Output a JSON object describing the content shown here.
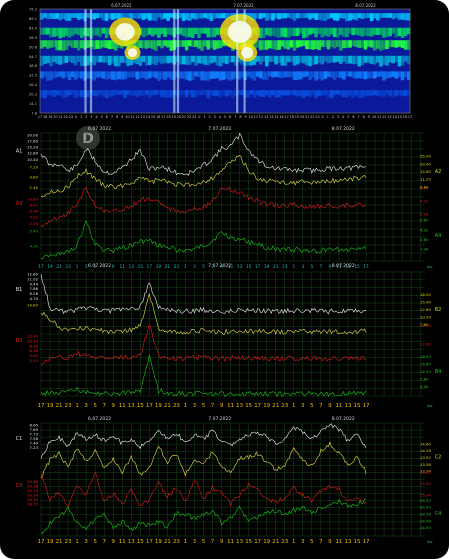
{
  "colors": {
    "white": "#f2f2f2",
    "yellow": "#e6e64a",
    "red": "#e01c1c",
    "green": "#18c818",
    "grid": "#1f5a1f",
    "date_text": "#dcdcdc",
    "axis_text_x": "#20c0c0",
    "axis_text_bottom": "#f0c000",
    "y_yellow": "#d8d800",
    "y_red": "#e02020",
    "y_green": "#20c020"
  },
  "spectrogram": {
    "top_dates": [
      "6.07.2022",
      "7.07.2022",
      "8.07.2022"
    ],
    "y_ticks": [
      "7.8",
      "14.1",
      "20.3",
      "26.4",
      "32.5",
      "38.6",
      "44.7",
      "50.8",
      "56.9",
      "63.0",
      "69.1",
      "75.2"
    ],
    "time_labels": [
      "17",
      "18",
      "19",
      "20",
      "21",
      "22",
      "23",
      "0",
      "1",
      "2",
      "3",
      "4",
      "5",
      "6",
      "7",
      "8",
      "9",
      "10",
      "11",
      "12",
      "13",
      "14",
      "15",
      "16",
      "17",
      "18",
      "19",
      "20",
      "21",
      "22",
      "23",
      "0",
      "1",
      "2",
      "3",
      "4",
      "5",
      "6",
      "7",
      "8",
      "9",
      "10",
      "11",
      "12",
      "13",
      "14",
      "15",
      "16",
      "17",
      "18",
      "19",
      "20",
      "21",
      "22",
      "23",
      "0",
      "1",
      "2",
      "3",
      "4",
      "5",
      "6",
      "7",
      "8",
      "9",
      "10",
      "11",
      "12",
      "13",
      "14",
      "15",
      "16",
      "17"
    ]
  },
  "watermark": "D",
  "chart_data": [
    {
      "type": "line",
      "panel": "A",
      "dates": [
        "6.07.2022",
        "7.07.2022",
        "8.07.2022"
      ],
      "x": [
        "17",
        "19",
        "21",
        "23",
        "1",
        "3",
        "5",
        "7",
        "9",
        "11",
        "13",
        "15",
        "17",
        "19",
        "21",
        "23",
        "1",
        "3",
        "5",
        "7",
        "9",
        "11",
        "13",
        "15",
        "17",
        "19",
        "21",
        "23",
        "1",
        "3",
        "5",
        "7",
        "9",
        "11",
        "13",
        "15",
        "17"
      ],
      "x_unit": "utc",
      "series": [
        {
          "name": "A1",
          "color": "white",
          "values": [
            14.5,
            11.5,
            12.0,
            10.2,
            11.5,
            15.5,
            12.6,
            10.0,
            9.8,
            11.0,
            13.0,
            15.2,
            10.5,
            11.2,
            10.8,
            9.8,
            9.5,
            10.2,
            11.6,
            13.2,
            15.5,
            16.2,
            18.8,
            15.2,
            12.8,
            11.5,
            10.8,
            10.6,
            10.4,
            10.5,
            10.3,
            10.6,
            10.8,
            11.0,
            10.9,
            11.0,
            11.2
          ]
        },
        {
          "name": "A2",
          "color": "yellow",
          "values": [
            3.5,
            4.0,
            4.5,
            5.2,
            7.5,
            8.8,
            7.0,
            5.6,
            5.2,
            5.6,
            6.2,
            7.4,
            6.3,
            6.8,
            6.4,
            5.8,
            5.6,
            5.9,
            6.4,
            7.2,
            9.0,
            10.6,
            12.1,
            8.9,
            7.0,
            6.6,
            6.4,
            6.3,
            6.2,
            6.3,
            6.2,
            6.4,
            6.6,
            6.8,
            7.0,
            7.2,
            7.4
          ]
        },
        {
          "name": "A3",
          "color": "red",
          "values": [
            1.5,
            2.8,
            3.2,
            3.9,
            5.6,
            8.4,
            5.5,
            4.3,
            4.1,
            4.6,
            5.1,
            6.3,
            6.4,
            5.8,
            4.9,
            4.5,
            4.3,
            4.6,
            5.1,
            5.9,
            8.4,
            8.2,
            7.7,
            6.7,
            6.1,
            5.5,
            5.3,
            5.3,
            5.5,
            5.2,
            5.0,
            5.1,
            5.3,
            5.2,
            5.3,
            5.4,
            5.6
          ]
        },
        {
          "name": "A4",
          "color": "green",
          "values": [
            0.5,
            1.2,
            1.6,
            2.1,
            3.2,
            8.7,
            3.4,
            2.5,
            2.3,
            2.7,
            3.3,
            4.1,
            4.2,
            3.4,
            2.8,
            2.5,
            2.2,
            2.5,
            3.2,
            4.3,
            6.0,
            5.0,
            4.7,
            4.0,
            3.6,
            2.9,
            2.6,
            2.4,
            2.5,
            2.3,
            2.2,
            2.3,
            2.6,
            2.4,
            2.5,
            2.8,
            3.0
          ]
        }
      ],
      "left_ticks": [
        {
          "series": "A1",
          "labels": [
            "20.00",
            "17.60",
            "15.20",
            "12.80",
            "10.40"
          ]
        },
        {
          "series": "A2",
          "labels": [
            "7.20",
            "4.80",
            "2.40"
          ]
        },
        {
          "series": "A3",
          "labels": [
            "10.80",
            "8.64",
            "6.48",
            "4.32",
            "2.16"
          ]
        },
        {
          "series": "A4",
          "labels": [
            "5.40",
            "4.32"
          ]
        }
      ],
      "right_ticks": [
        {
          "series": "A2",
          "labels": [
            "25.00",
            "20.40",
            "15.80",
            "11.20",
            "6.60"
          ]
        },
        {
          "series": "A3",
          "labels": [
            "5.40",
            "4.32",
            "2.16"
          ]
        },
        {
          "series": "A4",
          "labels": [
            "5.60",
            "4.20",
            "2.80",
            "1.40"
          ]
        }
      ]
    },
    {
      "type": "line",
      "panel": "B",
      "dates": [
        "6.07.2022",
        "7.07.2022",
        "8.07.2022"
      ],
      "x": [
        "17",
        "19",
        "21",
        "23",
        "1",
        "3",
        "5",
        "7",
        "9",
        "11",
        "13",
        "15",
        "17",
        "19",
        "21",
        "23",
        "1",
        "3",
        "5",
        "7",
        "9",
        "11",
        "13",
        "15",
        "17",
        "19",
        "21",
        "23",
        "1",
        "3",
        "5",
        "7",
        "9",
        "11",
        "13",
        "15",
        "17"
      ],
      "x_unit": "utc",
      "series": [
        {
          "name": "B1",
          "color": "white",
          "values": [
            12.6,
            3.2,
            2.6,
            2.2,
            2.8,
            3.2,
            3.0,
            2.6,
            2.5,
            2.8,
            2.9,
            3.6,
            10.2,
            3.5,
            2.6,
            2.4,
            2.3,
            2.6,
            2.7,
            2.5,
            2.4,
            2.5,
            2.8,
            2.6,
            2.7,
            2.5,
            2.4,
            2.4,
            2.5,
            2.4,
            2.5,
            2.3,
            2.3,
            2.4,
            2.5,
            2.4,
            2.6
          ]
        },
        {
          "name": "B2",
          "color": "yellow",
          "values": [
            8.0,
            6.2,
            4.0,
            3.1,
            3.5,
            3.8,
            3.3,
            3.0,
            2.9,
            3.1,
            3.4,
            4.2,
            12.6,
            3.8,
            3.1,
            2.9,
            2.8,
            3.0,
            3.2,
            2.9,
            2.8,
            2.9,
            3.1,
            3.0,
            3.0,
            2.9,
            2.8,
            2.8,
            2.9,
            2.8,
            2.9,
            2.8,
            2.8,
            2.9,
            2.9,
            2.9,
            3.0
          ]
        },
        {
          "name": "B3",
          "color": "red",
          "values": [
            2.0,
            3.2,
            3.6,
            3.5,
            4.8,
            3.8,
            3.6,
            3.4,
            3.3,
            3.5,
            3.6,
            4.2,
            12.4,
            4.1,
            3.5,
            3.3,
            3.2,
            3.4,
            3.6,
            3.3,
            3.2,
            3.3,
            3.4,
            3.3,
            3.4,
            3.3,
            3.2,
            3.2,
            3.3,
            3.2,
            3.3,
            3.2,
            3.2,
            3.3,
            3.3,
            3.3,
            3.4
          ]
        },
        {
          "name": "B4",
          "color": "green",
          "values": [
            1.6,
            1.8,
            2.0,
            2.2,
            2.8,
            1.8,
            1.6,
            1.6,
            1.6,
            1.8,
            1.9,
            2.4,
            11.8,
            2.4,
            1.8,
            1.6,
            1.5,
            1.7,
            1.8,
            1.6,
            1.5,
            1.6,
            1.7,
            1.6,
            1.6,
            1.5,
            1.5,
            1.5,
            1.6,
            1.5,
            1.6,
            1.5,
            1.5,
            1.6,
            1.6,
            1.6,
            1.7
          ]
        }
      ],
      "left_ticks": [
        {
          "series": "B1",
          "labels": [
            "12.60",
            "11.02",
            "9.44",
            "7.86",
            "6.28",
            "4.70"
          ]
        },
        {
          "series": "B2",
          "labels": [
            "14.80"
          ]
        },
        {
          "series": "B3",
          "labels": [
            "12.40",
            "10.70",
            "8.64",
            "6.48",
            "5.45",
            "3.24"
          ]
        },
        {
          "series": "B4",
          "labels": []
        }
      ],
      "right_ticks": [
        {
          "series": "B2",
          "labels": [
            "18.00",
            "15.40",
            "12.80",
            "10.20",
            "7.60"
          ]
        },
        {
          "series": "B3",
          "labels": [
            "15.00",
            "12.90"
          ]
        },
        {
          "series": "B4",
          "labels": [
            "18.00",
            "15.60",
            "12.00",
            "7.60",
            "4.00"
          ]
        }
      ]
    },
    {
      "type": "line",
      "panel": "C",
      "dates": [
        "6.07.2022",
        "7.07.2022",
        "8.07.2022"
      ],
      "x": [
        "17",
        "19",
        "21",
        "23",
        "1",
        "3",
        "5",
        "7",
        "9",
        "11",
        "13",
        "15",
        "17",
        "19",
        "21",
        "23",
        "1",
        "3",
        "5",
        "7",
        "9",
        "11",
        "13",
        "15",
        "17",
        "19",
        "21",
        "23",
        "1",
        "3",
        "5",
        "7",
        "9",
        "11",
        "13",
        "15",
        "17"
      ],
      "x_unit": "utc",
      "series": [
        {
          "name": "C1",
          "color": "white",
          "values": [
            6.6,
            7.5,
            7.7,
            7.2,
            7.9,
            7.6,
            7.8,
            7.5,
            7.7,
            7.4,
            7.6,
            7.2,
            7.5,
            8.1,
            7.6,
            7.9,
            7.4,
            7.8,
            7.6,
            8.0,
            7.5,
            7.3,
            7.6,
            7.8,
            7.9,
            7.7,
            7.4,
            7.6,
            8.2,
            7.9,
            7.6,
            8.0,
            8.3,
            8.1,
            7.5,
            7.8,
            7.2
          ]
        },
        {
          "name": "C2",
          "color": "yellow",
          "values": [
            13.2,
            13.9,
            14.1,
            13.6,
            14.3,
            13.8,
            14.2,
            13.5,
            13.9,
            13.4,
            14.0,
            13.3,
            13.6,
            14.4,
            13.8,
            14.1,
            13.3,
            13.9,
            13.7,
            14.2,
            13.6,
            13.4,
            13.9,
            14.0,
            14.1,
            13.8,
            13.5,
            13.7,
            14.3,
            13.9,
            13.6,
            14.2,
            14.5,
            14.1,
            13.7,
            14.0,
            13.4
          ]
        },
        {
          "name": "C3",
          "color": "red",
          "values": [
            30.5,
            28.9,
            29.4,
            28.6,
            29.8,
            29.2,
            30.5,
            28.8,
            29.3,
            28.7,
            29.5,
            28.6,
            28.9,
            29.9,
            29.1,
            29.6,
            28.8,
            30.1,
            29.0,
            29.6,
            29.3,
            28.7,
            29.2,
            29.8,
            29.5,
            29.0,
            28.8,
            29.0,
            29.6,
            29.2,
            28.9,
            29.4,
            29.7,
            29.5,
            28.8,
            29.1,
            28.7
          ]
        },
        {
          "name": "C4",
          "color": "green",
          "values": [
            22.0,
            23.0,
            23.6,
            24.4,
            23.0,
            22.5,
            23.4,
            23.8,
            22.6,
            23.2,
            22.4,
            23.0,
            22.8,
            23.2,
            22.6,
            24.0,
            23.8,
            23.5,
            23.8,
            24.2,
            23.0,
            23.5,
            24.4,
            23.2,
            23.6,
            24.0,
            24.2,
            23.8,
            24.2,
            24.5,
            24.0,
            24.4,
            24.8,
            25.0,
            24.6,
            24.8,
            25.2
          ]
        }
      ],
      "left_ticks": [
        {
          "series": "C1",
          "labels": [
            "8.65",
            "7.69",
            "7.73",
            "7.56",
            "7.40",
            "7.23"
          ]
        },
        {
          "series": "C2",
          "labels": []
        },
        {
          "series": "C3",
          "labels": [
            "30.60",
            "29.38",
            "28.70",
            "30.54",
            "29.14",
            "28.70"
          ]
        },
        {
          "series": "C4",
          "labels": []
        }
      ],
      "right_ticks": [
        {
          "series": "C2",
          "labels": [
            "14.60",
            "14.26",
            "13.92",
            "13.58",
            "13.24"
          ]
        },
        {
          "series": "C3",
          "labels": [
            "28.80",
            "25.92",
            "25.04"
          ]
        },
        {
          "series": "C4",
          "labels": [
            "25.52",
            "25.04",
            "24.56",
            "24.08",
            "24.00"
          ]
        }
      ]
    }
  ]
}
